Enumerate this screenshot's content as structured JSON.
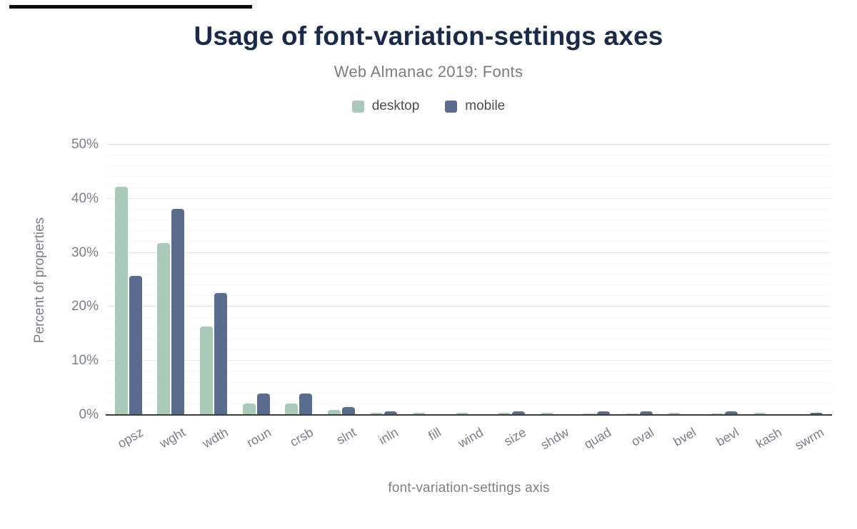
{
  "chart_data": {
    "type": "bar",
    "title": "Usage of font-variation-settings axes",
    "subtitle": "Web Almanac 2019: Fonts",
    "xlabel": "font-variation-settings axis",
    "ylabel": "Percent of properties",
    "ylim": [
      0,
      50
    ],
    "y_tick_labels": [
      "0%",
      "10%",
      "20%",
      "30%",
      "40%",
      "50%"
    ],
    "grid": {
      "major_step": 10,
      "minor_step": 2,
      "grid_on": true
    },
    "legend_position": "top",
    "categories": [
      "opsz",
      "wght",
      "wdth",
      "roun",
      "crsb",
      "slnt",
      "inln",
      "fill",
      "wind",
      "size",
      "shdw",
      "quad",
      "oval",
      "bvel",
      "bevl",
      "kash",
      "swrm"
    ],
    "series": [
      {
        "name": "desktop",
        "color": "#a8cab7",
        "values": [
          42.2,
          31.8,
          16.4,
          2.1,
          2.1,
          0.9,
          0.4,
          0.4,
          0.4,
          0.4,
          0.4,
          0.3,
          0.3,
          0.4,
          0.3,
          0.4,
          0.1
        ]
      },
      {
        "name": "mobile",
        "color": "#5b6d8f",
        "values": [
          25.7,
          38.1,
          22.6,
          4.0,
          4.0,
          1.4,
          0.7,
          0,
          0,
          0.6,
          0,
          0.6,
          0.6,
          0,
          0.7,
          0,
          0.4
        ]
      }
    ]
  },
  "colors": {
    "title": "#1a2b4a",
    "subtitle": "#7d7d7d",
    "legend_text": "#4d4d4d",
    "axis_text": "#7b7f87",
    "baseline": "#3c3c3c",
    "grid_major": "#e7e7e7",
    "grid_minor": "#f6f6f6"
  }
}
